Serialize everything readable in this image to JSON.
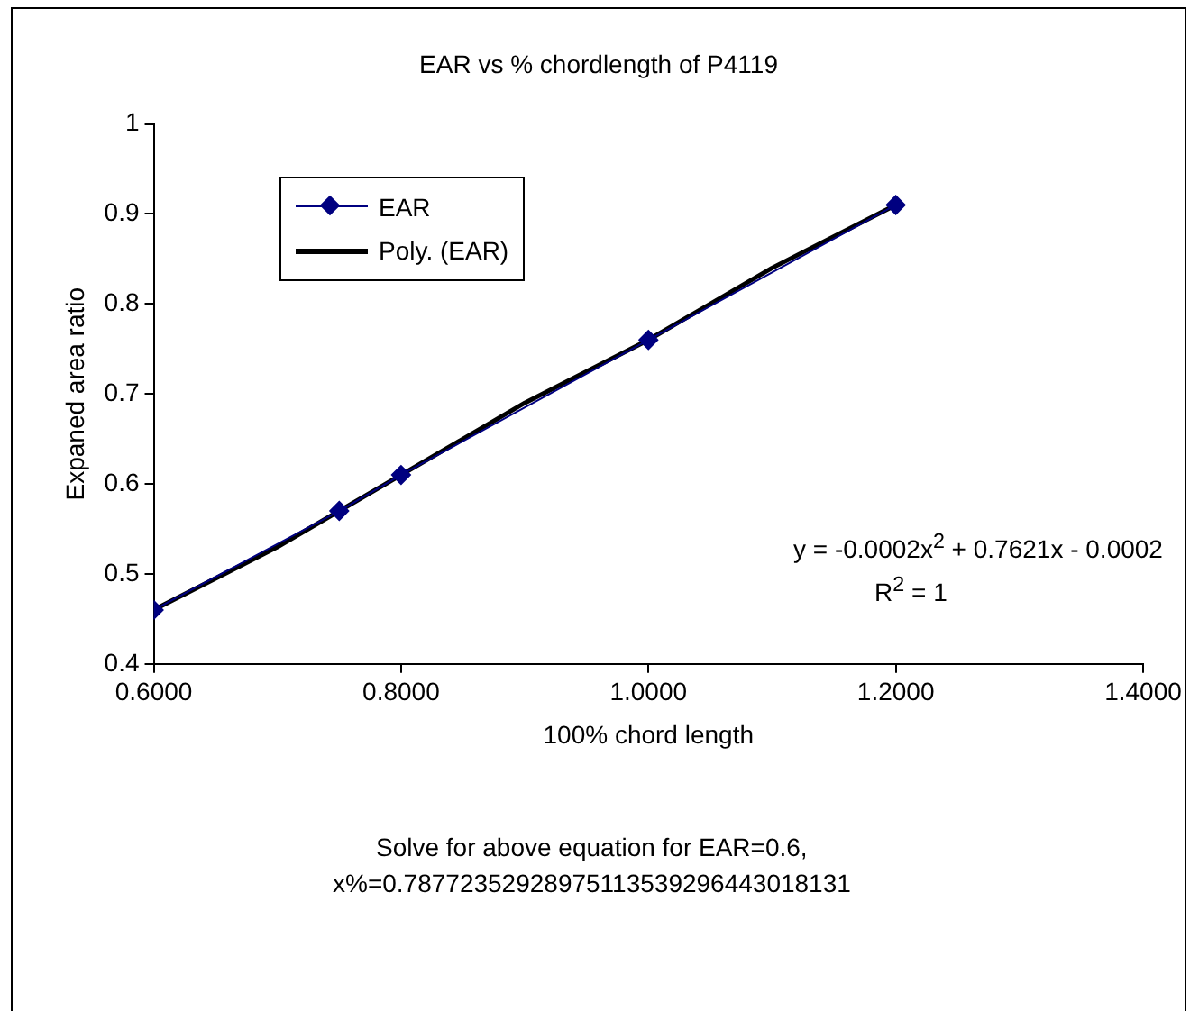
{
  "chart_data": {
    "type": "line",
    "title": "EAR vs % chordlength of P4119",
    "xlabel": "100% chord length",
    "ylabel": "Expaned area ratio",
    "x": [
      0.6,
      0.75,
      0.8,
      1.0,
      1.2
    ],
    "series": [
      {
        "name": "EAR",
        "color": "#000080",
        "values": [
          0.46,
          0.57,
          0.61,
          0.76,
          0.91
        ],
        "marker": "diamond"
      },
      {
        "name": "Poly. (EAR)",
        "color": "#000000",
        "type": "line",
        "marker": "none",
        "x": [
          0.6,
          0.7,
          0.8,
          0.9,
          1.0,
          1.1,
          1.2
        ],
        "values": [
          0.46,
          0.53,
          0.61,
          0.69,
          0.76,
          0.84,
          0.91
        ]
      }
    ],
    "xlim": [
      0.6,
      1.4
    ],
    "xticks": [
      {
        "value": 0.6,
        "label": "0.6000"
      },
      {
        "value": 0.8,
        "label": "0.8000"
      },
      {
        "value": 1.0,
        "label": "1.0000"
      },
      {
        "value": 1.2,
        "label": "1.2000"
      },
      {
        "value": 1.4,
        "label": "1.4000"
      }
    ],
    "ylim": [
      0.4,
      1
    ],
    "yticks": [
      0.4,
      0.5,
      0.6,
      0.7,
      0.8,
      0.9,
      1
    ],
    "grid": false,
    "legend": "top left",
    "annotations": [
      "y = -0.0002x$^{2}$ + 0.7621x - 0.0002",
      "R$^{2}$ = 1",
      "Solve for above equation for EAR=0.6,",
      "x%=0.78772352928975113539296443018131"
    ]
  }
}
